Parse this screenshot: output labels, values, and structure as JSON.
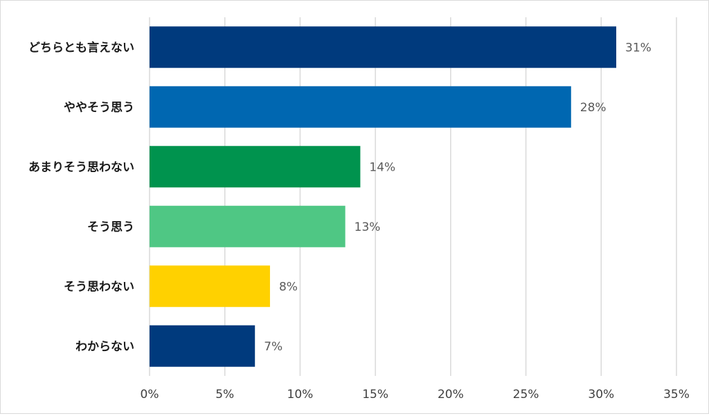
{
  "chart_data": {
    "type": "bar",
    "orientation": "horizontal",
    "categories": [
      "どちらとも言えない",
      "ややそう思う",
      "あまりそう思わない",
      "そう思う",
      "そう思わない",
      "わからない"
    ],
    "values": [
      31,
      28,
      14,
      13,
      8,
      7
    ],
    "value_labels": [
      "31%",
      "28%",
      "14%",
      "13%",
      "8%",
      "7%"
    ],
    "bar_colors": [
      "#003a7d",
      "#0067b1",
      "#00934e",
      "#4fc784",
      "#ffd100",
      "#003a7d"
    ],
    "xlim": [
      0,
      35
    ],
    "x_ticks": [
      0,
      5,
      10,
      15,
      20,
      25,
      30,
      35
    ],
    "x_tick_labels": [
      "0%",
      "5%",
      "10%",
      "15%",
      "20%",
      "25%",
      "30%",
      "35%"
    ],
    "grid": "vertical",
    "legend": "none",
    "title": "",
    "xlabel": "",
    "ylabel": ""
  }
}
